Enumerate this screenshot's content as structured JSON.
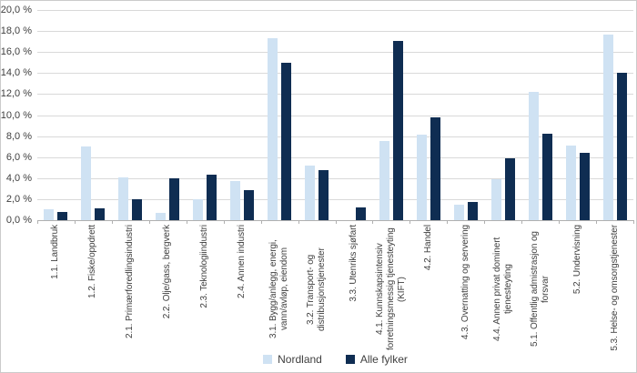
{
  "chart_data": {
    "type": "bar",
    "title": "",
    "xlabel": "",
    "ylabel": "",
    "ylim": [
      0,
      20
    ],
    "y_tick_step": 2,
    "y_tick_labels": [
      "0,0 %",
      "2,0 %",
      "4,0 %",
      "6,0 %",
      "8,0 %",
      "10,0 %",
      "12,0 %",
      "14,0 %",
      "16,0 %",
      "18,0 %",
      "20,0 %"
    ],
    "grid": true,
    "legend_position": "bottom",
    "categories": [
      "1.1. Landbruk",
      "1.2. Fiske/oppdrett",
      "2.1. Primærforedlingsindustri",
      "2.2. Olje/gass, bergverk",
      "2.3. Teknologiindustri",
      "2.4. Annen industri",
      "3.1. Bygg/anlegg, energi, vann/avløp, eiendom",
      "3.2. Transport- og distribusjonstjenester",
      "3.3. Utenriks sjøfart",
      "4.1. Kunnskapsintensiv forretningsmessig tjenesteyting (KIFT)",
      "4.2. Handel",
      "4.3. Overnatting og servering",
      "4.4. Annen privat dominert tjenesteyting",
      "5.1. Offentlig admistrasjon og forsvar",
      "5.2. Undervisning",
      "5.3. Helse- og omsorgstjenester"
    ],
    "series": [
      {
        "name": "Nordland",
        "color": "#cfe2f3",
        "values": [
          1.0,
          7.0,
          4.1,
          0.7,
          2.0,
          3.7,
          17.3,
          5.2,
          0.0,
          7.5,
          8.1,
          1.5,
          3.9,
          12.2,
          7.1,
          17.7
        ]
      },
      {
        "name": "Alle fylker",
        "color": "#0f2d52",
        "values": [
          0.8,
          1.1,
          2.0,
          4.0,
          4.3,
          2.9,
          15.0,
          4.8,
          1.2,
          17.1,
          9.8,
          1.7,
          5.9,
          8.2,
          6.4,
          14.0
        ]
      }
    ]
  },
  "colors": {
    "gridline": "#d9d9d9",
    "axis_line": "#b0b0b0",
    "text": "#404040"
  }
}
